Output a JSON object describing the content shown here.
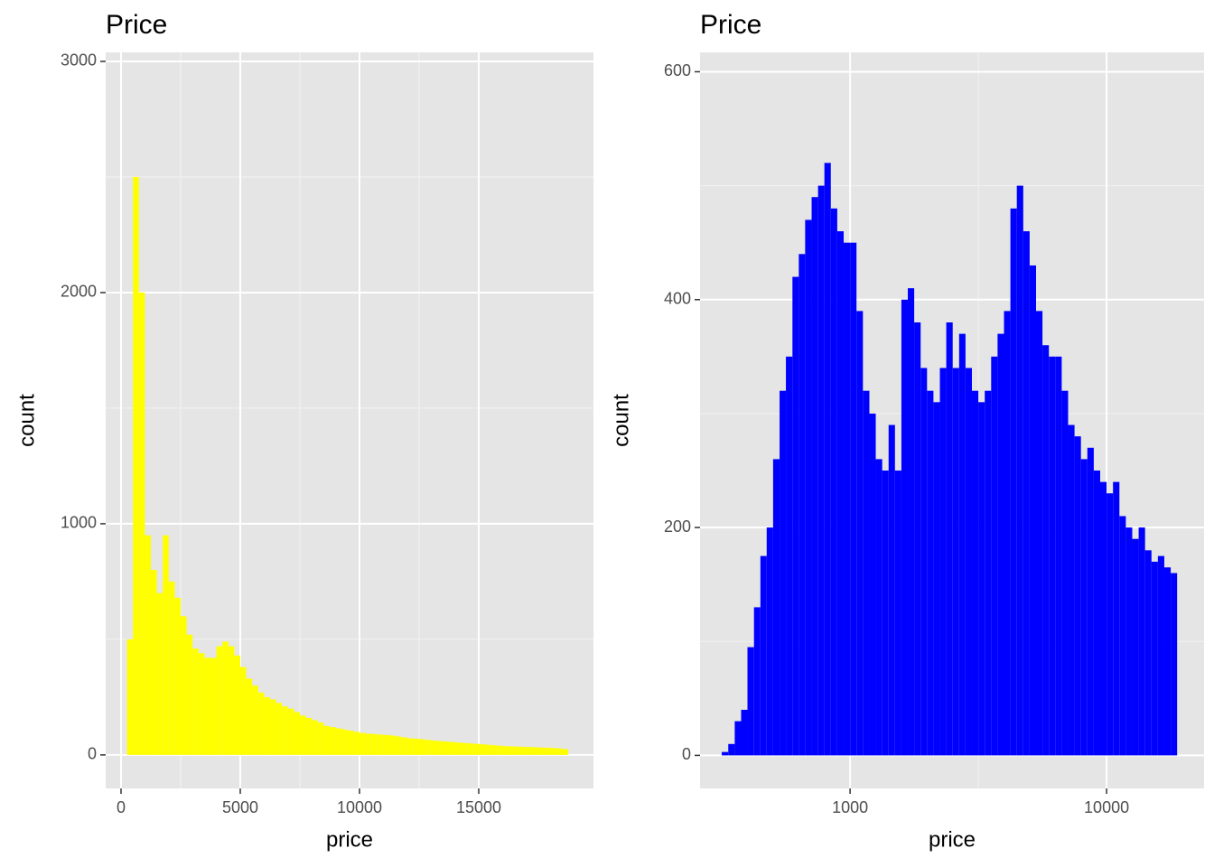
{
  "chart_data": [
    {
      "type": "histogram",
      "title": "Price",
      "xlabel": "price",
      "ylabel": "count",
      "color": "#ffff00",
      "xscale": "linear",
      "bins": [
        250,
        500,
        750,
        1000,
        1250,
        1500,
        1750,
        2000,
        2250,
        2500,
        2750,
        3000,
        3250,
        3500,
        3750,
        4000,
        4250,
        4500,
        4750,
        5000,
        5250,
        5500,
        5750,
        6000,
        6250,
        6500,
        6750,
        7000,
        7250,
        7500,
        7750,
        8000,
        8250,
        8500,
        8750,
        9000,
        9250,
        9500,
        9750,
        10000,
        10250,
        10500,
        10750,
        11000,
        11250,
        11500,
        11750,
        12000,
        12250,
        12500,
        12750,
        13000,
        13250,
        13500,
        13750,
        14000,
        14250,
        14500,
        14750,
        15000,
        15250,
        15500,
        15750,
        16000,
        16250,
        16500,
        16750,
        17000,
        17250,
        17500,
        17750,
        18000,
        18250,
        18500,
        18750
      ],
      "counts": [
        500,
        2500,
        2000,
        950,
        800,
        700,
        950,
        750,
        680,
        600,
        520,
        460,
        440,
        420,
        420,
        470,
        490,
        470,
        430,
        380,
        330,
        300,
        270,
        250,
        240,
        225,
        210,
        200,
        185,
        170,
        160,
        150,
        140,
        125,
        120,
        115,
        110,
        105,
        100,
        95,
        92,
        90,
        88,
        86,
        84,
        80,
        76,
        72,
        70,
        68,
        65,
        62,
        60,
        58,
        56,
        54,
        52,
        50,
        48,
        46,
        44,
        42,
        40,
        38,
        37,
        36,
        35,
        34,
        33,
        32,
        31,
        30,
        28,
        25
      ],
      "xlim": [
        -644,
        19811
      ],
      "ylim": [
        -145,
        3039
      ],
      "xticks": [
        0,
        5000,
        10000,
        15000
      ],
      "yticks": [
        0,
        1000,
        2000,
        3000
      ],
      "grid": true
    },
    {
      "type": "histogram",
      "title": "Price",
      "xlabel": "price",
      "ylabel": "count",
      "color": "#0000ff",
      "xscale": "log",
      "bins": [
        316,
        335,
        355,
        376,
        398,
        422,
        447,
        473,
        501,
        531,
        562,
        596,
        631,
        668,
        708,
        750,
        794,
        841,
        891,
        944,
        1000,
        1059,
        1122,
        1189,
        1259,
        1334,
        1413,
        1496,
        1585,
        1679,
        1778,
        1884,
        1995,
        2113,
        2239,
        2371,
        2512,
        2661,
        2818,
        2985,
        3162,
        3350,
        3548,
        3758,
        3981,
        4217,
        4467,
        4732,
        5012,
        5309,
        5623,
        5957,
        6310,
        6683,
        7079,
        7499,
        7943,
        8414,
        8913,
        9441,
        10000,
        10593,
        11220,
        11885,
        12589,
        13335,
        14125,
        14962,
        15849,
        16788,
        17783,
        18836
      ],
      "counts": [
        3,
        10,
        30,
        40,
        95,
        130,
        175,
        200,
        260,
        320,
        350,
        420,
        440,
        470,
        490,
        500,
        520,
        480,
        460,
        450,
        450,
        390,
        320,
        300,
        260,
        250,
        290,
        250,
        400,
        410,
        380,
        340,
        320,
        310,
        340,
        380,
        340,
        370,
        340,
        320,
        310,
        320,
        350,
        370,
        390,
        480,
        500,
        460,
        430,
        390,
        360,
        350,
        350,
        320,
        290,
        280,
        260,
        270,
        250,
        240,
        230,
        240,
        210,
        200,
        190,
        200,
        180,
        170,
        175,
        165,
        160
      ],
      "xlim": [
        260,
        23990
      ],
      "ylim": [
        -29,
        617
      ],
      "xticks": [
        1000,
        10000
      ],
      "yticks": [
        0,
        200,
        400,
        600
      ],
      "grid": true
    }
  ]
}
